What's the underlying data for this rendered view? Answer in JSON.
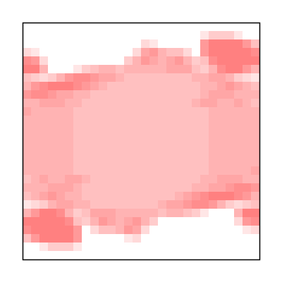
{
  "chart_data": {
    "type": "heatmap",
    "color": "#ff8080",
    "tick_labels": false,
    "cells": [
      [
        0,
        0,
        0,
        0,
        0,
        0,
        0,
        0,
        0,
        0,
        0,
        0,
        0,
        0,
        0,
        0,
        0,
        0,
        0,
        0,
        0,
        0,
        0,
        0,
        0,
        0,
        0,
        0
      ],
      [
        0,
        0,
        0,
        0,
        0,
        0,
        0,
        0,
        0,
        0,
        0,
        0,
        0,
        0,
        0,
        0,
        0,
        0,
        0,
        0,
        0,
        0.2,
        0.4,
        0.4,
        0.4,
        0.2,
        0,
        0
      ],
      [
        0,
        0,
        0,
        0,
        0,
        0,
        0,
        0,
        0,
        0,
        0,
        0,
        0,
        0,
        0.3,
        0.2,
        0,
        0,
        0,
        0,
        0,
        0.8,
        1,
        1,
        1,
        1,
        0.8,
        0.5
      ],
      [
        0.3,
        0.2,
        0,
        0,
        0,
        0,
        0,
        0,
        0,
        0,
        0,
        0,
        0,
        0.3,
        0.7,
        0.8,
        0.6,
        0.5,
        0.5,
        0.3,
        0,
        0.8,
        1,
        1,
        1,
        1,
        1,
        0.9
      ],
      [
        0.9,
        0.8,
        0.3,
        0,
        0,
        0,
        0,
        0,
        0,
        0,
        0,
        0,
        0.4,
        0.6,
        0.8,
        0.7,
        0.6,
        0.7,
        0.8,
        0.6,
        0.4,
        0.5,
        0.9,
        1,
        1,
        1,
        1,
        1
      ],
      [
        1,
        1,
        0.6,
        0,
        0,
        0,
        0.2,
        0.4,
        0.5,
        0.6,
        0.6,
        0.5,
        0.6,
        0.6,
        0.6,
        0.6,
        0.6,
        0.7,
        0.7,
        0.7,
        0.5,
        0.4,
        0.6,
        0.9,
        1,
        1,
        0.8,
        0.6
      ],
      [
        0.5,
        0.4,
        0.3,
        0.4,
        0.6,
        0.8,
        0.9,
        0.9,
        0.8,
        0.7,
        0.7,
        0.6,
        0.5,
        0.5,
        0.5,
        0.5,
        0.5,
        0.5,
        0.5,
        0.5,
        0.6,
        0.6,
        0.7,
        0.7,
        0.6,
        0.4,
        0.3,
        0.2
      ],
      [
        0.6,
        0.8,
        0.9,
        1,
        1,
        1,
        0.9,
        0.8,
        0.7,
        0.6,
        0.5,
        0.5,
        0.5,
        0.5,
        0.5,
        0.5,
        0.5,
        0.5,
        0.5,
        0.5,
        0.5,
        0.6,
        0.6,
        0.7,
        0.8,
        0.7,
        0.6,
        0.5
      ],
      [
        0.8,
        0.9,
        0.9,
        0.8,
        0.7,
        0.7,
        0.6,
        0.6,
        0.5,
        0.5,
        0.5,
        0.5,
        0.5,
        0.5,
        0.5,
        0.5,
        0.5,
        0.5,
        0.5,
        0.5,
        0.5,
        0.6,
        0.7,
        0.7,
        0.7,
        0.6,
        0.6,
        0.6
      ],
      [
        0.6,
        0.6,
        0.7,
        0.7,
        0.7,
        0.6,
        0.6,
        0.5,
        0.5,
        0.5,
        0.5,
        0.5,
        0.5,
        0.5,
        0.5,
        0.5,
        0.5,
        0.5,
        0.5,
        0.5,
        0.6,
        0.7,
        0.7,
        0.6,
        0.6,
        0.7,
        0.6,
        0.5
      ],
      [
        0.7,
        0.6,
        0.6,
        0.6,
        0.6,
        0.6,
        0.5,
        0.5,
        0.5,
        0.5,
        0.5,
        0.5,
        0.5,
        0.5,
        0.5,
        0.5,
        0.5,
        0.5,
        0.5,
        0.5,
        0.5,
        0.5,
        0.6,
        0.6,
        0.6,
        0.6,
        0.6,
        0.6
      ],
      [
        0.6,
        0.6,
        0.6,
        0.6,
        0.6,
        0.6,
        0.5,
        0.5,
        0.5,
        0.5,
        0.5,
        0.5,
        0.5,
        0.5,
        0.5,
        0.5,
        0.5,
        0.5,
        0.5,
        0.5,
        0.5,
        0.5,
        0.6,
        0.6,
        0.6,
        0.6,
        0.6,
        0.6
      ],
      [
        0.6,
        0.6,
        0.6,
        0.6,
        0.6,
        0.6,
        0.5,
        0.5,
        0.5,
        0.5,
        0.5,
        0.5,
        0.5,
        0.5,
        0.5,
        0.5,
        0.5,
        0.5,
        0.5,
        0.5,
        0.5,
        0.5,
        0.6,
        0.6,
        0.6,
        0.6,
        0.6,
        0.6
      ],
      [
        0.6,
        0.6,
        0.6,
        0.6,
        0.6,
        0.6,
        0.5,
        0.5,
        0.5,
        0.5,
        0.5,
        0.5,
        0.5,
        0.5,
        0.5,
        0.5,
        0.5,
        0.5,
        0.5,
        0.5,
        0.5,
        0.5,
        0.6,
        0.6,
        0.6,
        0.6,
        0.6,
        0.6
      ],
      [
        0.6,
        0.6,
        0.6,
        0.6,
        0.6,
        0.6,
        0.5,
        0.5,
        0.5,
        0.5,
        0.5,
        0.5,
        0.5,
        0.5,
        0.5,
        0.5,
        0.5,
        0.5,
        0.5,
        0.5,
        0.5,
        0.5,
        0.6,
        0.6,
        0.6,
        0.6,
        0.6,
        0.6
      ],
      [
        0.6,
        0.6,
        0.6,
        0.6,
        0.6,
        0.6,
        0.5,
        0.5,
        0.5,
        0.5,
        0.5,
        0.5,
        0.5,
        0.5,
        0.5,
        0.5,
        0.5,
        0.5,
        0.5,
        0.5,
        0.5,
        0.5,
        0.6,
        0.6,
        0.6,
        0.6,
        0.6,
        0.6
      ],
      [
        0.6,
        0.6,
        0.6,
        0.6,
        0.6,
        0.6,
        0.5,
        0.5,
        0.5,
        0.5,
        0.5,
        0.5,
        0.5,
        0.5,
        0.5,
        0.5,
        0.5,
        0.5,
        0.5,
        0.5,
        0.5,
        0.5,
        0.6,
        0.6,
        0.6,
        0.6,
        0.6,
        0.6
      ],
      [
        0.6,
        0.6,
        0.6,
        0.6,
        0.6,
        0.6,
        0.5,
        0.5,
        0.5,
        0.5,
        0.5,
        0.5,
        0.5,
        0.5,
        0.5,
        0.5,
        0.5,
        0.5,
        0.5,
        0.5,
        0.5,
        0.5,
        0.6,
        0.6,
        0.6,
        0.6,
        0.6,
        0.7
      ],
      [
        0.5,
        0.6,
        0.7,
        0.6,
        0.6,
        0.7,
        0.7,
        0.6,
        0.5,
        0.5,
        0.5,
        0.5,
        0.5,
        0.5,
        0.5,
        0.5,
        0.5,
        0.5,
        0.5,
        0.5,
        0.5,
        0.6,
        0.6,
        0.7,
        0.7,
        0.7,
        0.6,
        0.6
      ],
      [
        0.6,
        0.6,
        0.6,
        0.7,
        0.7,
        0.7,
        0.6,
        0.5,
        0.5,
        0.5,
        0.5,
        0.5,
        0.5,
        0.5,
        0.5,
        0.5,
        0.5,
        0.5,
        0.5,
        0.5,
        0.6,
        0.6,
        0.7,
        0.7,
        0.8,
        0.9,
        0.9,
        0.8
      ],
      [
        0.5,
        0.6,
        0.7,
        0.8,
        0.7,
        0.6,
        0.6,
        0.5,
        0.5,
        0.5,
        0.5,
        0.5,
        0.5,
        0.5,
        0.5,
        0.5,
        0.5,
        0.5,
        0.6,
        0.7,
        0.8,
        0.9,
        1,
        1,
        1,
        0.9,
        0.8,
        0.6
      ],
      [
        0.2,
        0.3,
        0.4,
        0.6,
        0.7,
        0.7,
        0.6,
        0.6,
        0.5,
        0.5,
        0.5,
        0.5,
        0.5,
        0.5,
        0.5,
        0.5,
        0.6,
        0.7,
        0.7,
        0.8,
        0.9,
        0.9,
        0.8,
        0.6,
        0.4,
        0.3,
        0.4,
        0.5
      ],
      [
        0.6,
        0.8,
        1,
        1,
        0.9,
        0.6,
        0.4,
        0.5,
        0.7,
        0.7,
        0.7,
        0.6,
        0.6,
        0.6,
        0.6,
        0.6,
        0.5,
        0.6,
        0.6,
        0.5,
        0.4,
        0.2,
        0,
        0,
        0,
        0.6,
        1,
        1
      ],
      [
        1,
        1,
        1,
        1,
        1,
        0.9,
        0.5,
        0.4,
        0.6,
        0.8,
        0.7,
        0.6,
        0.7,
        0.8,
        0.6,
        0.4,
        0,
        0,
        0,
        0,
        0,
        0,
        0,
        0,
        0,
        0.3,
        0.8,
        0.9
      ],
      [
        0.9,
        1,
        1,
        1,
        1,
        1,
        0.8,
        0,
        0.3,
        0.5,
        0.5,
        0.6,
        0.8,
        0.7,
        0.3,
        0,
        0,
        0,
        0,
        0,
        0,
        0,
        0,
        0,
        0,
        0,
        0.2,
        0.3
      ],
      [
        0.5,
        0.8,
        1,
        1,
        1,
        1,
        0.8,
        0,
        0,
        0,
        0,
        0,
        0.2,
        0.3,
        0,
        0,
        0,
        0,
        0,
        0,
        0,
        0,
        0,
        0,
        0,
        0,
        0,
        0
      ],
      [
        0,
        0,
        0.2,
        0.4,
        0.4,
        0.4,
        0.2,
        0,
        0,
        0,
        0,
        0,
        0,
        0,
        0,
        0,
        0,
        0,
        0,
        0,
        0,
        0,
        0,
        0,
        0,
        0,
        0,
        0
      ],
      [
        0,
        0,
        0,
        0,
        0,
        0,
        0,
        0,
        0,
        0,
        0,
        0,
        0,
        0,
        0,
        0,
        0,
        0,
        0,
        0,
        0,
        0,
        0,
        0,
        0,
        0,
        0,
        0
      ]
    ]
  }
}
